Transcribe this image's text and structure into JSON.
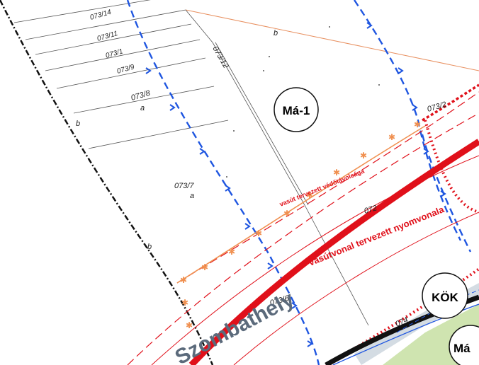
{
  "map": {
    "parcels": {
      "p073_14": "073/14",
      "p073_11": "073/11",
      "p073_10": "073/1",
      "p073_9": "073/9",
      "p073_8": "073/8",
      "p073_8_sub": "a",
      "p073_7": "073/7",
      "p073_7_sub": "a",
      "p073_12": "073/12",
      "p073_2": "073/2",
      "p072": "072",
      "p073_6": "073/6",
      "p074": "074",
      "sub_b1": "b",
      "sub_b2": "b",
      "sub_b3": "b"
    },
    "zones": {
      "ma1": "Má-1",
      "kok": "KÖK",
      "ma_partial": "Má"
    },
    "labels": {
      "railway_protection": "vasút tervezett védőtávolsága",
      "railway_line": "vasútvonal tervezett nyomvonala",
      "town": "Szombathely"
    },
    "colors": {
      "railway_red": "#e0101a",
      "watercourse_blue": "#1f56e0",
      "protection_orange": "#f09050",
      "green_area": "#cfe4b0",
      "zone_grey": "#5b6a7b"
    }
  }
}
